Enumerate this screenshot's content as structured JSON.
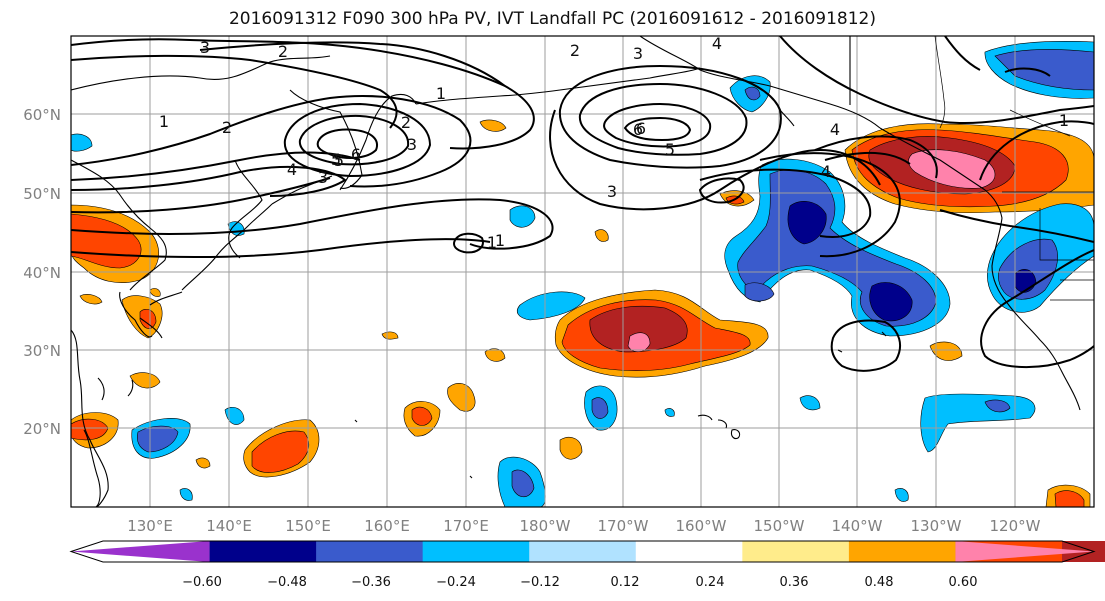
{
  "title": "2016091312 F090 300 hPa PV, IVT Landfall PC (2016091612 - 2016091812)",
  "map": {
    "projection": "equirectangular",
    "lon_range": [
      120,
      245
    ],
    "lat_range": [
      10,
      70
    ],
    "lat_ticks": [
      "60°N",
      "50°N",
      "40°N",
      "30°N",
      "20°N"
    ],
    "lon_ticks": [
      "130°E",
      "140°E",
      "150°E",
      "160°E",
      "170°E",
      "180°W",
      "170°W",
      "160°W",
      "150°W",
      "140°W",
      "130°W",
      "120°W"
    ],
    "gridlines": true
  },
  "pv_contour_labels": [
    "3",
    "2",
    "3",
    "4",
    "1",
    "2",
    "6",
    "5",
    "1",
    "2",
    "4",
    "3",
    "1",
    "6",
    "5",
    "3",
    "4",
    "4",
    "1",
    "1",
    "2",
    "3",
    "5",
    "6"
  ],
  "colorbar": {
    "ticks": [
      "−0.60",
      "−0.48",
      "−0.36",
      "−0.24",
      "−0.12",
      "0.12",
      "0.24",
      "0.36",
      "0.48",
      "0.60"
    ],
    "colors": [
      "#9a32cd",
      "#00008b",
      "#3a5bcc",
      "#00bfff",
      "#b0e2ff",
      "#ffffff",
      "#ffec8b",
      "#ffa500",
      "#ff4500",
      "#b22222",
      "#ff82ab"
    ]
  }
}
